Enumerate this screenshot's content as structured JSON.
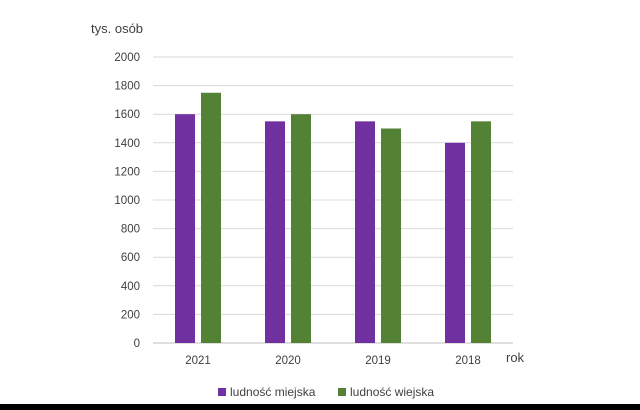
{
  "chart_data": {
    "type": "bar",
    "categories": [
      "2021",
      "2020",
      "2019",
      "2018"
    ],
    "series": [
      {
        "name": "ludność miejska",
        "values": [
          1600,
          1550,
          1550,
          1400
        ],
        "color": "#7030A0"
      },
      {
        "name": "ludność wiejska",
        "values": [
          1750,
          1600,
          1500,
          1550
        ],
        "color": "#548235"
      }
    ],
    "ylabel": "tys. osób",
    "xlabel": "rok",
    "ylim": [
      0,
      2000
    ],
    "yticks": [
      0,
      200,
      400,
      600,
      800,
      1000,
      1200,
      1400,
      1600,
      1800,
      2000
    ],
    "grid": true,
    "legend": "bottom"
  },
  "colors": {
    "gridline": "#d9d9d9",
    "text": "#404040"
  }
}
